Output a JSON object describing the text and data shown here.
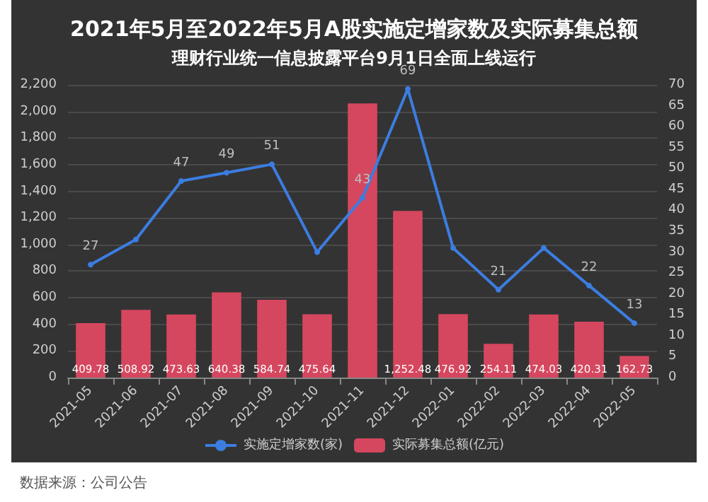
{
  "chart_data": {
    "type": "bar",
    "title": "2021年5月至2022年5月A股实施定增家数及实际募集总额",
    "subtitle": "理财行业统一信息披露平台9月1日全面上线运行",
    "categories": [
      "2021-05",
      "2021-06",
      "2021-07",
      "2021-08",
      "2021-09",
      "2021-10",
      "2021-11",
      "2021-12",
      "2022-01",
      "2022-02",
      "2022-03",
      "2022-04",
      "2022-05"
    ],
    "series": [
      {
        "name": "实施定增家数(家)",
        "type": "line",
        "axis": "y2",
        "color": "#3b7de0",
        "values": [
          27,
          33,
          47,
          49,
          51,
          30,
          43,
          69,
          31,
          21,
          31,
          22,
          13
        ],
        "value_labels": [
          "27",
          null,
          "47",
          "49",
          "51",
          null,
          "43",
          "69",
          null,
          "21",
          null,
          "22",
          "13"
        ]
      },
      {
        "name": "实际募集总额(亿元)",
        "color": "#d4475e",
        "values": [
          409.78,
          508.92,
          473.63,
          640.38,
          584.74,
          475.64,
          2060,
          1252.48,
          476.92,
          254.11,
          474.03,
          420.31,
          162.73
        ],
        "value_labels": [
          "409.78",
          "508.92",
          "473.63",
          "640.38",
          "584.74",
          "475.64",
          null,
          "1,252.48",
          "476.92",
          "254.11",
          "474.03",
          "420.31",
          "162.73"
        ]
      }
    ],
    "ylim": [
      0,
      2200
    ],
    "yticks": [
      0,
      200,
      400,
      600,
      800,
      {
        "value": 1000,
        "label": "1,000"
      },
      {
        "value": 1200,
        "label": "1,200"
      },
      {
        "value": 1400,
        "label": "1,400"
      },
      {
        "value": 1600,
        "label": "1,600"
      },
      {
        "value": 1800,
        "label": "1,800"
      },
      {
        "value": 2000,
        "label": "2,000"
      },
      {
        "value": 2200,
        "label": "2,200"
      }
    ],
    "y2lim": [
      0,
      70
    ],
    "y2ticks": [
      0,
      5,
      10,
      15,
      20,
      25,
      30,
      35,
      40,
      45,
      50,
      55,
      60,
      65,
      70
    ],
    "grid": "y",
    "legend": "bottom",
    "marker": "circle",
    "annotations": [
      "数据来源：公司公告"
    ]
  }
}
